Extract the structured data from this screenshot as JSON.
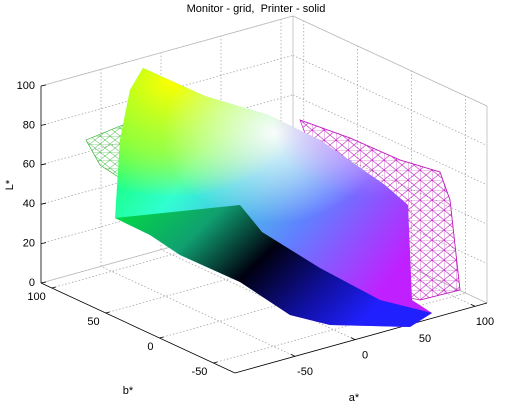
{
  "chart_data": {
    "type": "surface3d",
    "title": "Monitor - grid,  Printer - solid",
    "xlabel": "a*",
    "ylabel": "b*",
    "zlabel": "L*",
    "xlim": [
      -100,
      110
    ],
    "xticks": [
      -50,
      0,
      50,
      100
    ],
    "ylim": [
      -70,
      110
    ],
    "yticks": [
      -50,
      0,
      50,
      100
    ],
    "zlim": [
      0,
      100
    ],
    "zticks": [
      0,
      20,
      40,
      60,
      80,
      100
    ],
    "grid": true
  }
}
